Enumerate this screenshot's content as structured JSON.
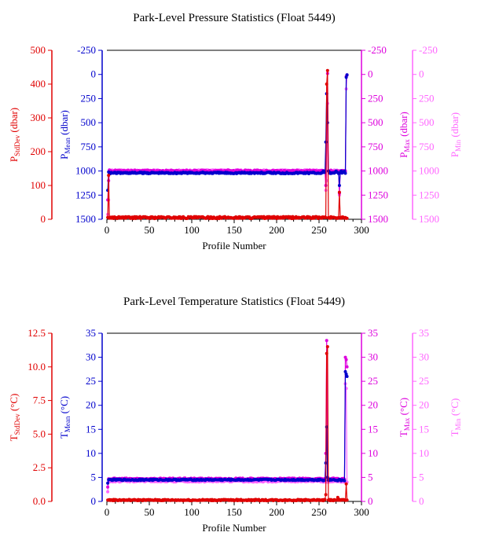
{
  "chart_data": [
    {
      "type": "line",
      "title": "Park-Level Pressure Statistics (Float 5449)",
      "xlabel": "Profile Number",
      "xlim": [
        0,
        300
      ],
      "x_ticks": [
        0,
        50,
        100,
        150,
        200,
        250,
        300
      ],
      "axes": [
        {
          "key": "std",
          "label_main": "P",
          "label_sub": "StdDev",
          "label_unit": " (dbar)",
          "color": "#e00000",
          "lim": [
            0,
            500
          ],
          "ticks": [
            0,
            100,
            200,
            300,
            400,
            500
          ],
          "tick_labels": [
            "0",
            "100",
            "200",
            "300",
            "400",
            "500"
          ],
          "reversed": false
        },
        {
          "key": "mean",
          "label_main": "P",
          "label_sub": "Mean",
          "label_unit": " (dbar)",
          "color": "#0000cc",
          "lim": [
            1500,
            -250
          ],
          "ticks": [
            -250,
            0,
            250,
            500,
            750,
            1000,
            1250,
            1500
          ],
          "tick_labels": [
            "-250",
            "0",
            "250",
            "500",
            "750",
            "1000",
            "1250",
            "1500"
          ],
          "reversed": true
        },
        {
          "key": "max",
          "label_main": "P",
          "label_sub": "Max",
          "label_unit": " (dbar)",
          "color": "#dd00dd",
          "lim": [
            1500,
            -250
          ],
          "ticks": [
            -250,
            0,
            250,
            500,
            750,
            1000,
            1250,
            1500
          ],
          "tick_labels": [
            "-250",
            "0",
            "250",
            "500",
            "750",
            "1000",
            "1250",
            "1500"
          ],
          "reversed": true
        },
        {
          "key": "min",
          "label_main": "P",
          "label_sub": "Min",
          "label_unit": " (dbar)",
          "color": "#ff66ff",
          "lim": [
            1500,
            -250
          ],
          "ticks": [
            -250,
            0,
            250,
            500,
            750,
            1000,
            1250,
            1500
          ],
          "tick_labels": [
            "-250",
            "0",
            "250",
            "500",
            "750",
            "1000",
            "1250",
            "1500"
          ],
          "reversed": true
        }
      ],
      "series": [
        {
          "key": "std",
          "color": "#e00000",
          "base": 5,
          "noise": 3,
          "x": [
            2,
            258,
            259,
            260,
            261,
            272,
            274,
            276,
            280,
            282,
            283
          ],
          "y": [
            130,
            5,
            400,
            440,
            5,
            3,
            80,
            3,
            3,
            3,
            3
          ]
        },
        {
          "key": "mean",
          "color": "#0000cc",
          "base": 1020,
          "noise": 8,
          "x": [
            1,
            2,
            255,
            258,
            259,
            260,
            261,
            262,
            270,
            274,
            276,
            278,
            280,
            282,
            283
          ],
          "y": [
            1200,
            1010,
            1000,
            700,
            200,
            500,
            1000,
            1010,
            1000,
            1150,
            1000,
            1010,
            1000,
            30,
            5
          ]
        },
        {
          "key": "max",
          "color": "#dd00dd",
          "base": 1000,
          "noise": 10,
          "x": [
            1,
            2,
            3,
            255,
            258,
            259,
            260,
            261,
            262,
            270,
            274,
            276,
            278,
            280,
            282,
            283
          ],
          "y": [
            1300,
            1100,
            990,
            995,
            1150,
            200,
            -10,
            1000,
            1000,
            1000,
            1230,
            1000,
            995,
            1000,
            20,
            5
          ]
        },
        {
          "key": "min",
          "color": "#ff66ff",
          "base": 1000,
          "noise": 12,
          "x": [
            1,
            2,
            3,
            255,
            258,
            259,
            260,
            261,
            262,
            270,
            274,
            276,
            278,
            280,
            282,
            283
          ],
          "y": [
            1450,
            1300,
            1000,
            995,
            1200,
            1100,
            300,
            1000,
            1000,
            1000,
            1250,
            1000,
            995,
            1000,
            150,
            10
          ]
        }
      ]
    },
    {
      "type": "line",
      "title": "Park-Level Temperature Statistics (Float 5449)",
      "xlabel": "Profile Number",
      "xlim": [
        0,
        300
      ],
      "x_ticks": [
        0,
        50,
        100,
        150,
        200,
        250,
        300
      ],
      "axes": [
        {
          "key": "std",
          "label_main": "T",
          "label_sub": "StdDev",
          "label_unit": " (°C)",
          "color": "#e00000",
          "lim": [
            0,
            12.5
          ],
          "ticks": [
            0,
            2.5,
            5,
            7.5,
            10,
            12.5
          ],
          "tick_labels": [
            "0.0",
            "2.5",
            "5.0",
            "7.5",
            "10.0",
            "12.5"
          ],
          "reversed": false
        },
        {
          "key": "mean",
          "label_main": "T",
          "label_sub": "Mean",
          "label_unit": " (°C)",
          "color": "#0000cc",
          "lim": [
            0,
            35
          ],
          "ticks": [
            0,
            5,
            10,
            15,
            20,
            25,
            30,
            35
          ],
          "tick_labels": [
            "0",
            "5",
            "10",
            "15",
            "20",
            "25",
            "30",
            "35"
          ],
          "reversed": false
        },
        {
          "key": "max",
          "label_main": "T",
          "label_sub": "Max",
          "label_unit": " (°C)",
          "color": "#dd00dd",
          "lim": [
            0,
            35
          ],
          "ticks": [
            0,
            5,
            10,
            15,
            20,
            25,
            30,
            35
          ],
          "tick_labels": [
            "0",
            "5",
            "10",
            "15",
            "20",
            "25",
            "30",
            "35"
          ],
          "reversed": false
        },
        {
          "key": "min",
          "label_main": "T",
          "label_sub": "Min",
          "label_unit": " (°C)",
          "color": "#ff66ff",
          "lim": [
            0,
            35
          ],
          "ticks": [
            0,
            5,
            10,
            15,
            20,
            25,
            30,
            35
          ],
          "tick_labels": [
            "0",
            "5",
            "10",
            "15",
            "20",
            "25",
            "30",
            "35"
          ],
          "reversed": false
        }
      ],
      "series": [
        {
          "key": "std",
          "color": "#e00000",
          "base": 0.1,
          "noise": 0.05,
          "x": [
            2,
            255,
            258,
            259,
            260,
            261,
            272,
            276,
            280,
            282,
            283
          ],
          "y": [
            0.1,
            0.05,
            0.5,
            11.0,
            11.5,
            0.1,
            0.3,
            0.1,
            0.1,
            1.3,
            0.1
          ]
        },
        {
          "key": "mean",
          "color": "#0000cc",
          "base": 4.5,
          "noise": 0.15,
          "x": [
            1,
            2,
            255,
            258,
            259,
            260,
            261,
            272,
            276,
            280,
            281,
            282,
            283
          ],
          "y": [
            3.8,
            4.5,
            4.3,
            8,
            15.5,
            5,
            4.4,
            4.3,
            4.3,
            4.3,
            27,
            26.5,
            26
          ]
        },
        {
          "key": "max",
          "color": "#dd00dd",
          "base": 4.7,
          "noise": 0.15,
          "x": [
            1,
            2,
            255,
            258,
            259,
            260,
            261,
            272,
            276,
            280,
            281,
            282,
            283
          ],
          "y": [
            3.0,
            4.7,
            4.5,
            10,
            33.5,
            5,
            4.6,
            4.8,
            4.6,
            4.6,
            30,
            29.5,
            28
          ]
        },
        {
          "key": "min",
          "color": "#ff66ff",
          "base": 4.2,
          "noise": 0.15,
          "x": [
            1,
            2,
            255,
            258,
            259,
            260,
            261,
            272,
            276,
            280,
            281,
            282,
            283
          ],
          "y": [
            2.0,
            4.2,
            4.0,
            4.0,
            4.2,
            4.0,
            4.0,
            4.3,
            4.0,
            4.0,
            24.5,
            23.5,
            4.0
          ]
        }
      ]
    }
  ]
}
